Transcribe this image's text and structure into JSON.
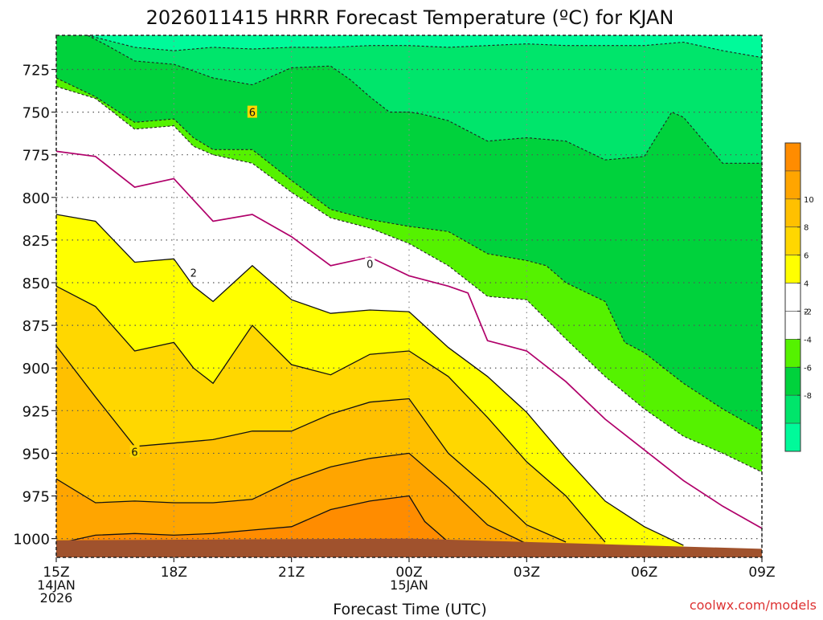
{
  "chart_data": {
    "type": "heatmap",
    "title": "2026011415 HRRR Forecast Temperature (ºC) for KJAN",
    "xlabel": "Forecast Time (UTC)",
    "ylabel": "",
    "x_ticks": [
      {
        "hour": 0,
        "lines": [
          "15Z",
          "14JAN",
          "2026"
        ]
      },
      {
        "hour": 3,
        "lines": [
          "18Z"
        ]
      },
      {
        "hour": 6,
        "lines": [
          "21Z"
        ]
      },
      {
        "hour": 9,
        "lines": [
          "00Z",
          "15JAN"
        ]
      },
      {
        "hour": 12,
        "lines": [
          "03Z"
        ]
      },
      {
        "hour": 15,
        "lines": [
          "06Z"
        ]
      },
      {
        "hour": 18,
        "lines": [
          "09Z"
        ]
      }
    ],
    "x_range_hours": [
      0,
      18
    ],
    "y_ticks": [
      725,
      750,
      775,
      800,
      825,
      850,
      875,
      900,
      925,
      950,
      975,
      1000
    ],
    "y_range_hpa": [
      705,
      1011
    ],
    "legend": {
      "placement": "right",
      "bins": [
        {
          "min": -10,
          "max": -8,
          "color": "#00fa9a"
        },
        {
          "min": -8,
          "max": -6,
          "color": "#00e56b"
        },
        {
          "min": -6,
          "max": -4,
          "color": "#00d23c"
        },
        {
          "min": -4,
          "max": -2,
          "color": "#55f200"
        },
        {
          "min": -2,
          "max": 0,
          "color": "#ffffff"
        },
        {
          "min": 0,
          "max": 2,
          "color": "#ffffff"
        },
        {
          "min": 2,
          "max": 4,
          "color": "#ffff00"
        },
        {
          "min": 4,
          "max": 6,
          "color": "#ffd700"
        },
        {
          "min": 6,
          "max": 8,
          "color": "#ffc000"
        },
        {
          "min": 8,
          "max": 10,
          "color": "#ffa500"
        },
        {
          "min": 10,
          "max": 12,
          "color": "#ff8c00"
        }
      ],
      "labels": [
        10,
        8,
        6,
        4,
        2,
        -2,
        -4,
        -6,
        -8
      ]
    },
    "contour_labels": [
      {
        "text": "6",
        "hour": 5.0,
        "hpa": 750
      },
      {
        "text": "0",
        "hour": 8.0,
        "hpa": 839
      },
      {
        "text": "2",
        "hour": 3.5,
        "hpa": 844
      },
      {
        "text": "6",
        "hour": 2.0,
        "hpa": 949
      }
    ],
    "contours": [
      {
        "level": -8,
        "style": "dashed",
        "points": [
          [
            0.8,
            705
          ],
          [
            2,
            712
          ],
          [
            3,
            714
          ],
          [
            4,
            712
          ],
          [
            5,
            713
          ],
          [
            6,
            712
          ],
          [
            7,
            712
          ],
          [
            8,
            711
          ],
          [
            9,
            711
          ],
          [
            10,
            712
          ],
          [
            11,
            711
          ],
          [
            12,
            710
          ],
          [
            13,
            711
          ],
          [
            14,
            711
          ],
          [
            15,
            711
          ],
          [
            16,
            709
          ],
          [
            17,
            714
          ],
          [
            18,
            718
          ]
        ]
      },
      {
        "level": -6,
        "style": "dashed",
        "points": [
          [
            0.8,
            705
          ],
          [
            1.3,
            711
          ],
          [
            2,
            720
          ],
          [
            3,
            722
          ],
          [
            3.4,
            725
          ],
          [
            4,
            730
          ],
          [
            5,
            734
          ],
          [
            6,
            724
          ],
          [
            7,
            723
          ],
          [
            7.5,
            731
          ],
          [
            8,
            741
          ],
          [
            8.5,
            750
          ],
          [
            9,
            750
          ],
          [
            9.3,
            751
          ],
          [
            10,
            755
          ],
          [
            11,
            767
          ],
          [
            12,
            765
          ],
          [
            13,
            767
          ],
          [
            14,
            778
          ],
          [
            15,
            776
          ],
          [
            15.7,
            750
          ],
          [
            16,
            753
          ],
          [
            17,
            780
          ],
          [
            18,
            780
          ]
        ]
      },
      {
        "level": -4,
        "style": "dashed",
        "points": [
          [
            0,
            730
          ],
          [
            1,
            741
          ],
          [
            2,
            756
          ],
          [
            3,
            754
          ],
          [
            3.5,
            765
          ],
          [
            4,
            772
          ],
          [
            5,
            772
          ],
          [
            6,
            790
          ],
          [
            7,
            807
          ],
          [
            8,
            813
          ],
          [
            9,
            817
          ],
          [
            10,
            820
          ],
          [
            11,
            833
          ],
          [
            12,
            837
          ],
          [
            12.5,
            840
          ],
          [
            13,
            850
          ],
          [
            14,
            861
          ],
          [
            14.5,
            885
          ],
          [
            15,
            891
          ],
          [
            16,
            909
          ],
          [
            17,
            924
          ],
          [
            18,
            937
          ]
        ]
      },
      {
        "level": -2,
        "style": "dashed",
        "points": [
          [
            0,
            735
          ],
          [
            1,
            742
          ],
          [
            2,
            760
          ],
          [
            3,
            758
          ],
          [
            3.5,
            770
          ],
          [
            4,
            775
          ],
          [
            5,
            780
          ],
          [
            6,
            797
          ],
          [
            7,
            812
          ],
          [
            8,
            818
          ],
          [
            9,
            827
          ],
          [
            10,
            840
          ],
          [
            11,
            858
          ],
          [
            12,
            860
          ],
          [
            13,
            883
          ],
          [
            14,
            905
          ],
          [
            15,
            924
          ],
          [
            16,
            940
          ],
          [
            17,
            950
          ],
          [
            18,
            961
          ]
        ]
      },
      {
        "level": 0,
        "style": "solid",
        "points": [
          [
            0,
            773
          ],
          [
            1,
            776
          ],
          [
            2,
            794
          ],
          [
            3,
            789
          ],
          [
            4,
            814
          ],
          [
            5,
            810
          ],
          [
            6,
            823
          ],
          [
            7,
            840
          ],
          [
            8,
            835
          ],
          [
            9,
            846
          ],
          [
            10,
            852
          ],
          [
            10.5,
            856
          ],
          [
            11,
            884
          ],
          [
            12,
            890
          ],
          [
            13,
            908
          ],
          [
            14,
            930
          ],
          [
            15,
            948
          ],
          [
            16,
            966
          ],
          [
            17,
            981
          ],
          [
            18,
            994
          ]
        ]
      },
      {
        "level": 2,
        "style": "solid",
        "points": [
          [
            0,
            810
          ],
          [
            1,
            814
          ],
          [
            2,
            838
          ],
          [
            3,
            836
          ],
          [
            3.5,
            852
          ],
          [
            4,
            861
          ],
          [
            5,
            840
          ],
          [
            6,
            860
          ],
          [
            7,
            868
          ],
          [
            8,
            866
          ],
          [
            9,
            867
          ],
          [
            10,
            888
          ],
          [
            11,
            905
          ],
          [
            12,
            926
          ],
          [
            13,
            953
          ],
          [
            14,
            978
          ],
          [
            15,
            993
          ],
          [
            16,
            1004
          ]
        ]
      },
      {
        "level": 4,
        "style": "solid",
        "points": [
          [
            0,
            852
          ],
          [
            1,
            864
          ],
          [
            2,
            890
          ],
          [
            3,
            885
          ],
          [
            3.5,
            900
          ],
          [
            4,
            909
          ],
          [
            5,
            875
          ],
          [
            6,
            898
          ],
          [
            7,
            904
          ],
          [
            8,
            892
          ],
          [
            9,
            890
          ],
          [
            10,
            905
          ],
          [
            11,
            929
          ],
          [
            12,
            955
          ],
          [
            13,
            975
          ],
          [
            14,
            1002
          ]
        ]
      },
      {
        "level": 6,
        "style": "solid",
        "points": [
          [
            0,
            887
          ],
          [
            1,
            917
          ],
          [
            2,
            946
          ],
          [
            3,
            944
          ],
          [
            4,
            942
          ],
          [
            5,
            937
          ],
          [
            6,
            937
          ],
          [
            7,
            927
          ],
          [
            8,
            920
          ],
          [
            9,
            918
          ],
          [
            10,
            950
          ],
          [
            11,
            970
          ],
          [
            12,
            992
          ],
          [
            13,
            1002
          ]
        ]
      },
      {
        "level": 8,
        "style": "solid",
        "points": [
          [
            0,
            965
          ],
          [
            1,
            979
          ],
          [
            2,
            978
          ],
          [
            3,
            979
          ],
          [
            4,
            979
          ],
          [
            5,
            977
          ],
          [
            6,
            966
          ],
          [
            7,
            958
          ],
          [
            8,
            953
          ],
          [
            9,
            950
          ],
          [
            10,
            970
          ],
          [
            11,
            992
          ],
          [
            12,
            1003
          ]
        ]
      },
      {
        "level": 10,
        "style": "solid",
        "points": [
          [
            0,
            1003
          ],
          [
            1,
            998
          ],
          [
            2,
            997
          ],
          [
            3,
            998
          ],
          [
            4,
            997
          ],
          [
            5,
            995
          ],
          [
            6,
            993
          ],
          [
            7,
            983
          ],
          [
            8,
            978
          ],
          [
            9,
            975
          ],
          [
            9.4,
            990
          ],
          [
            10,
            1002
          ]
        ]
      }
    ],
    "surface": {
      "color": "#a0522d",
      "points": [
        [
          0,
          1001
        ],
        [
          9,
          1000
        ],
        [
          18,
          1006
        ]
      ]
    },
    "watermark": "coolwx.com/models"
  }
}
